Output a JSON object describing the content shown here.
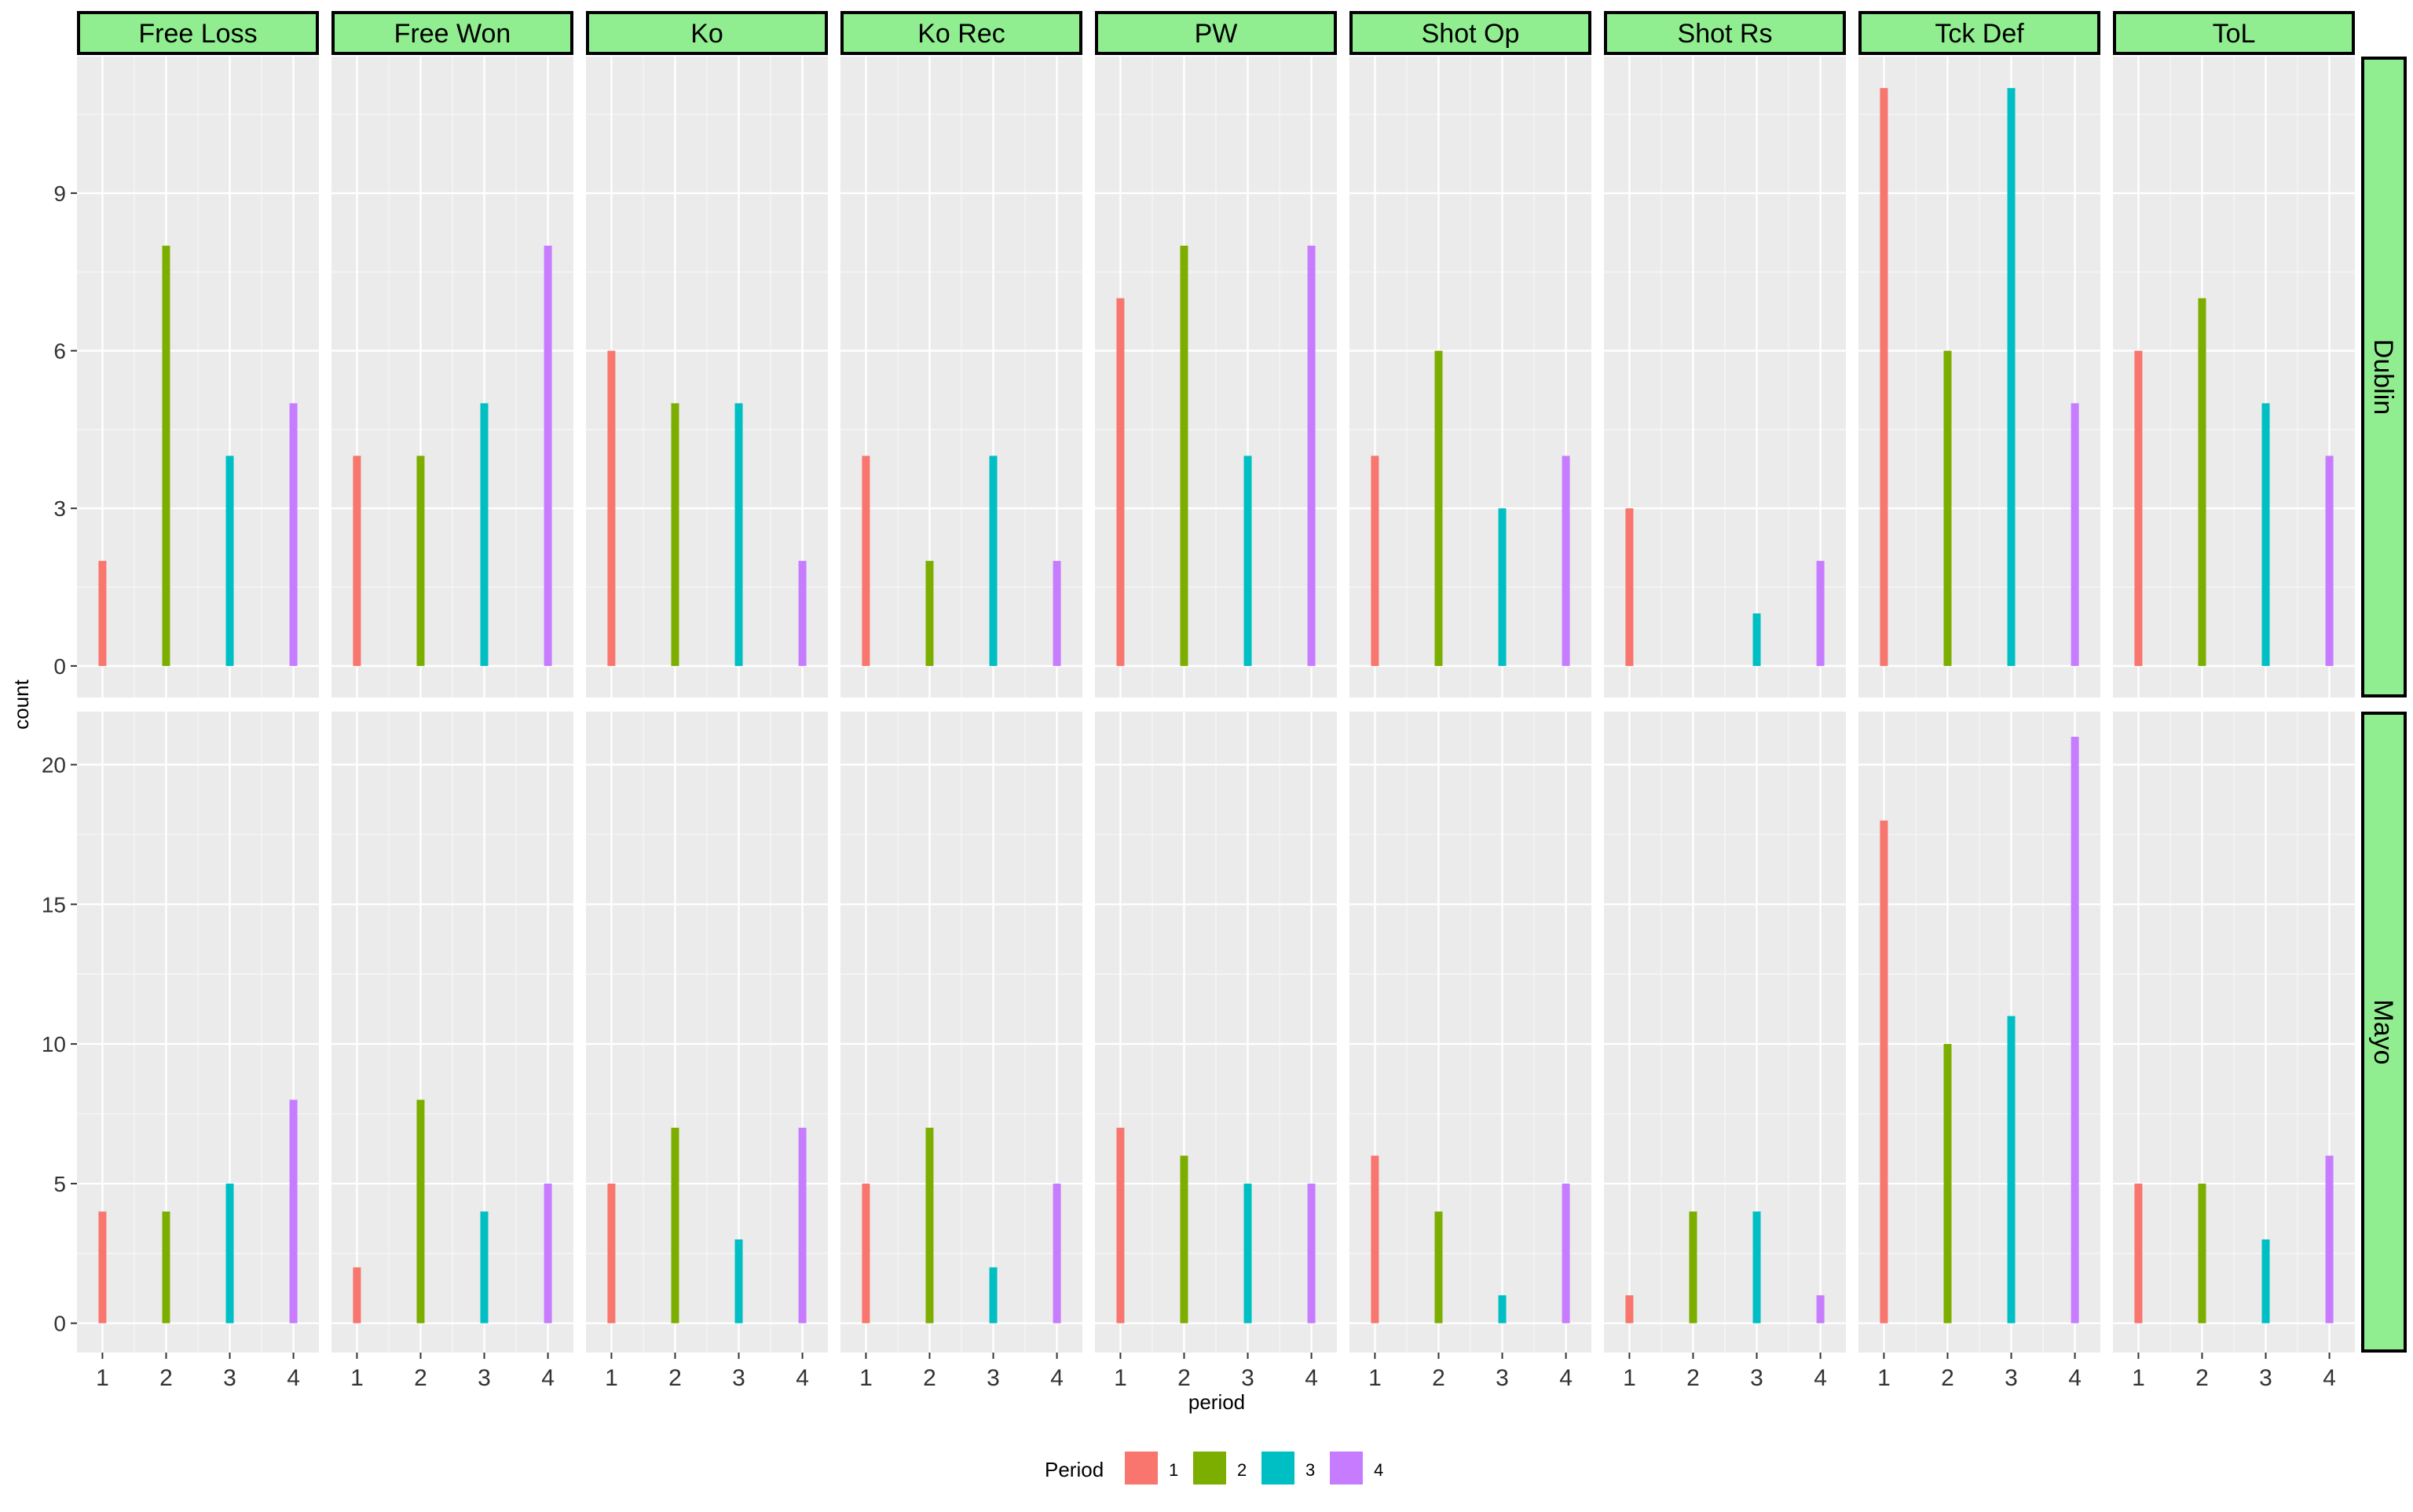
{
  "chart_data": {
    "type": "bar",
    "xlabel": "period",
    "ylabel": "count",
    "x": [
      1,
      2,
      3,
      4
    ],
    "facet_columns": [
      "Free Loss",
      "Free Won",
      "Ko",
      "Ko Rec",
      "PW",
      "Shot Op",
      "Shot Rs",
      "Tck Def",
      "ToL"
    ],
    "facet_rows": [
      {
        "name": "Dublin",
        "ylim": [
          -0.6,
          11.6
        ],
        "yticks": [
          0,
          3,
          6,
          9
        ]
      },
      {
        "name": "Mayo",
        "ylim": [
          -1.05,
          21.9
        ],
        "yticks": [
          0,
          5,
          10,
          15,
          20
        ]
      }
    ],
    "values": {
      "Dublin": [
        [
          2,
          8,
          4,
          5
        ],
        [
          4,
          4,
          5,
          8
        ],
        [
          6,
          5,
          5,
          2
        ],
        [
          4,
          2,
          4,
          2
        ],
        [
          7,
          8,
          4,
          8
        ],
        [
          4,
          6,
          3,
          4
        ],
        [
          3,
          0,
          1,
          2
        ],
        [
          11,
          6,
          11,
          5
        ],
        [
          6,
          7,
          5,
          4
        ]
      ],
      "Mayo": [
        [
          4,
          4,
          5,
          8
        ],
        [
          2,
          8,
          4,
          5
        ],
        [
          5,
          7,
          3,
          7
        ],
        [
          5,
          7,
          2,
          5
        ],
        [
          7,
          6,
          5,
          5
        ],
        [
          6,
          4,
          1,
          5
        ],
        [
          1,
          4,
          4,
          1
        ],
        [
          18,
          10,
          11,
          21
        ],
        [
          5,
          5,
          3,
          6
        ]
      ]
    },
    "legend": {
      "title": "Period",
      "position": "bottom",
      "items": [
        {
          "label": "1",
          "color": "#F8766D"
        },
        {
          "label": "2",
          "color": "#7CAE00"
        },
        {
          "label": "3",
          "color": "#00BFC4"
        },
        {
          "label": "4",
          "color": "#C77CFF"
        }
      ]
    },
    "grid": true,
    "colors": {
      "panel_bg": "#EBEBEB",
      "grid_major": "#FFFFFF",
      "strip_bg": "#90EE90",
      "strip_border": "#000000",
      "text": "#000000"
    }
  }
}
